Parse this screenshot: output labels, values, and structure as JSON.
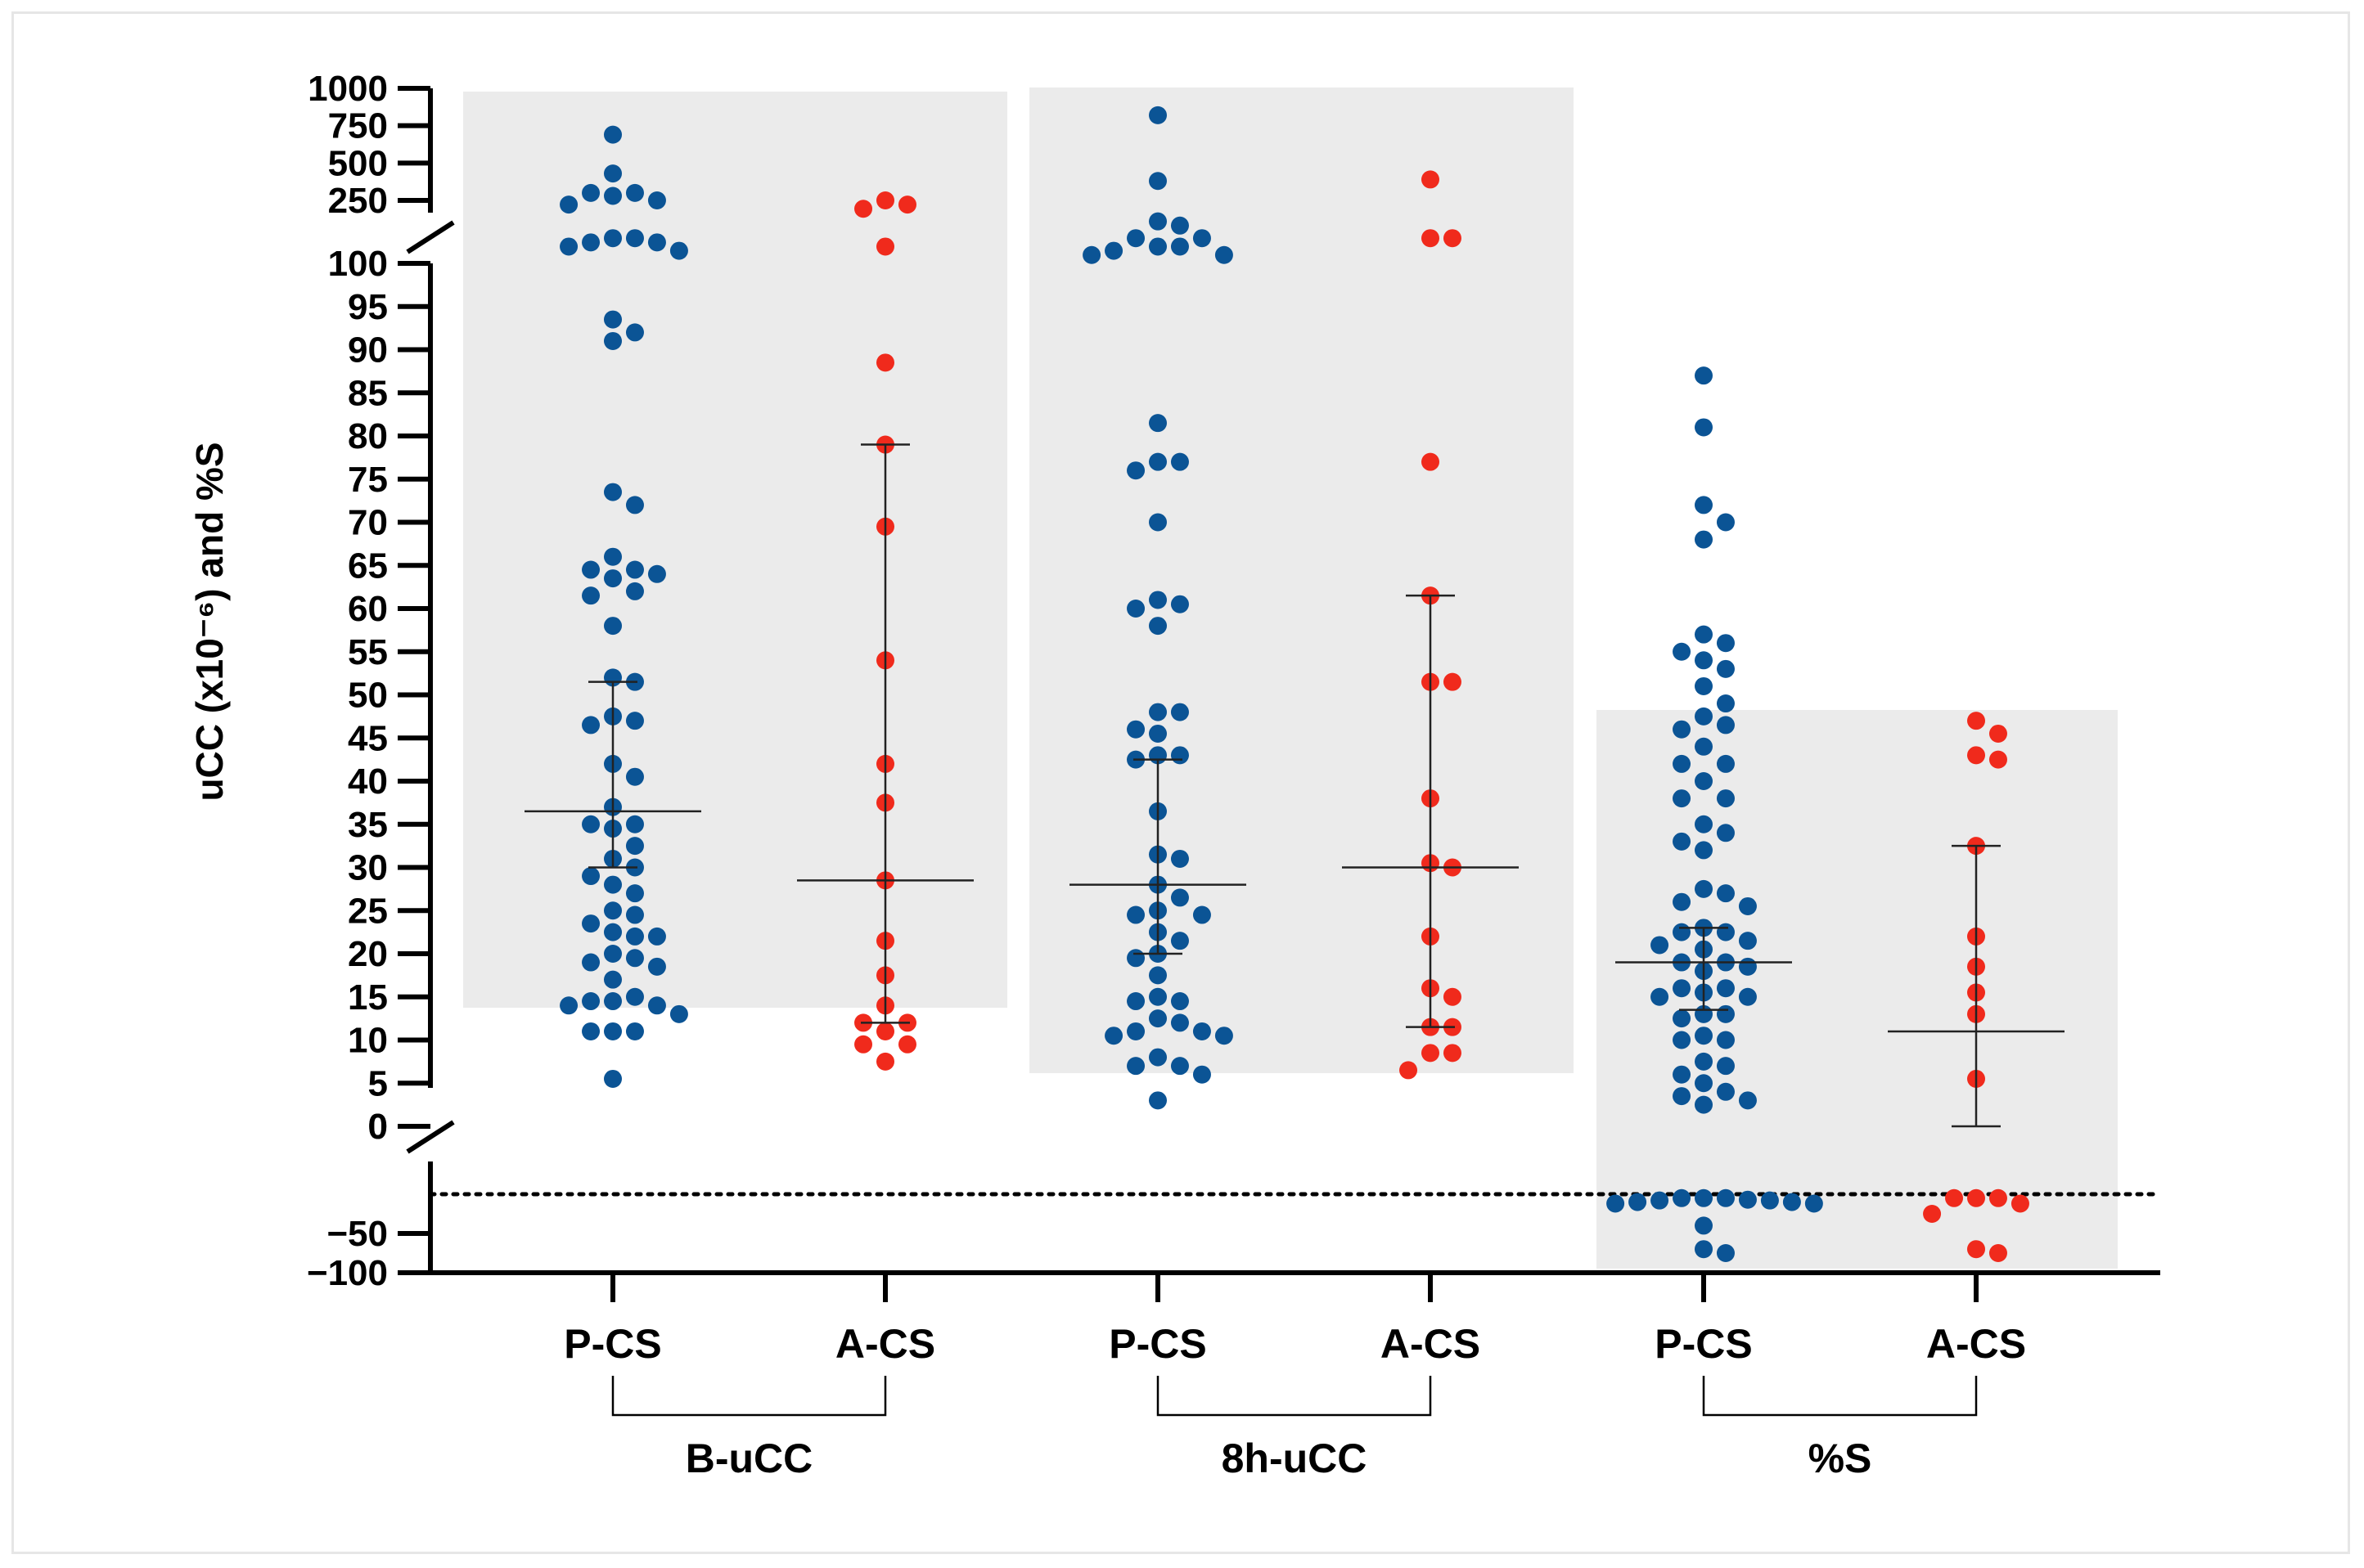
{
  "chart_data": {
    "type": "scatter",
    "subtype": "beeswarm dot plot with median and IQR bars, broken y-axis",
    "ylabel": "uCC (x10⁻⁶) and %S",
    "xlabel": "",
    "y_axis_segments": [
      {
        "range": [
          -100,
          0
        ],
        "ticks": [
          "0",
          "−50",
          "−100"
        ],
        "tick_values": [
          0,
          -50,
          -100
        ]
      },
      {
        "range": [
          0,
          100
        ],
        "ticks": [
          "0",
          "5",
          "10",
          "15",
          "20",
          "25",
          "30",
          "35",
          "40",
          "45",
          "50",
          "55",
          "60",
          "65",
          "70",
          "75",
          "80",
          "85",
          "90",
          "95",
          "100"
        ],
        "tick_values": [
          0,
          5,
          10,
          15,
          20,
          25,
          30,
          35,
          40,
          45,
          50,
          55,
          60,
          65,
          70,
          75,
          80,
          85,
          90,
          95,
          100
        ]
      },
      {
        "range": [
          100,
          1000
        ],
        "ticks": [
          "250",
          "500",
          "750",
          "1000"
        ],
        "tick_values": [
          250,
          500,
          750,
          1000
        ]
      }
    ],
    "zero_reference_line": "dotted",
    "colors": {
      "P-CS": "#0b5495",
      "A-CS": "#f02a1c",
      "shading": "#ebebeb"
    },
    "groups": [
      {
        "name": "B-uCC",
        "shaded": true,
        "series": [
          {
            "name": "P-CS",
            "color": "#0b5495",
            "median": 36.5,
            "q1": 30,
            "q3": 51.5,
            "values": [
              690,
              430,
              300,
              300,
              280,
              250,
              240,
              160,
              160,
              150,
              150,
              140,
              130,
              93.5,
              92,
              91,
              73.5,
              72,
              66,
              64.5,
              64.5,
              64,
              63.5,
              62,
              61.5,
              58,
              52,
              51.5,
              47.5,
              47,
              46.5,
              42,
              40.5,
              37,
              35,
              35,
              34.5,
              32.5,
              31,
              30,
              29,
              28,
              27,
              25,
              24.5,
              23.5,
              22.5,
              22,
              22,
              20,
              19.5,
              19,
              18.5,
              17,
              15,
              14.5,
              14.5,
              14,
              14,
              13,
              11,
              11,
              11,
              5.5
            ]
          },
          {
            "name": "A-CS",
            "color": "#f02a1c",
            "median": 28.5,
            "q1": 12,
            "q3": 79,
            "values": [
              250,
              240,
              230,
              140,
              88.5,
              79,
              69.5,
              54,
              42,
              37.5,
              28.5,
              21.5,
              17.5,
              14,
              12,
              12,
              11,
              9.5,
              9.5,
              7.5
            ]
          }
        ]
      },
      {
        "name": "8h-uCC",
        "shaded": true,
        "series": [
          {
            "name": "P-CS",
            "color": "#0b5495",
            "median": 28,
            "q1": 20,
            "q3": 42.5,
            "values": [
              820,
              380,
              200,
              190,
              160,
              160,
              140,
              140,
              130,
              120,
              120,
              81.5,
              77,
              77,
              76,
              70,
              61,
              60.5,
              60,
              58,
              48,
              48,
              46,
              45.5,
              43,
              43,
              42.5,
              36.5,
              31.5,
              31,
              28,
              26.5,
              25,
              24.5,
              24.5,
              22.5,
              21.5,
              20,
              19.5,
              17.5,
              15,
              14.5,
              14.5,
              12.5,
              12,
              11,
              11,
              10.5,
              10.5,
              8,
              7,
              7,
              6,
              3
            ]
          },
          {
            "name": "A-CS",
            "color": "#f02a1c",
            "median": 30,
            "q1": 11.5,
            "q3": 61.5,
            "values": [
              390,
              160,
              160,
              77,
              61.5,
              51.5,
              51.5,
              38,
              30.5,
              30,
              22,
              16,
              15,
              11.5,
              11.5,
              8.5,
              8.5,
              6.5
            ]
          }
        ]
      },
      {
        "name": "%S",
        "shaded": true,
        "series": [
          {
            "name": "P-CS",
            "color": "#0b5495",
            "median": 19,
            "q1": 13.5,
            "q3": 23,
            "values": [
              87,
              81,
              72,
              70,
              68,
              57,
              56,
              55,
              54,
              53,
              51,
              49,
              47.5,
              46.5,
              46,
              44,
              42,
              42,
              40,
              38,
              38,
              35,
              34,
              33,
              32,
              27.5,
              27,
              26,
              25.5,
              23,
              22.5,
              22.5,
              21.5,
              21,
              20.5,
              19,
              19,
              18.5,
              18,
              16,
              16,
              15.5,
              15,
              15,
              13,
              13,
              12.5,
              10.5,
              10,
              10,
              7.5,
              7,
              6,
              5,
              4,
              3.5,
              3,
              2.5,
              -5,
              -5,
              -5,
              -7,
              -8,
              -8,
              -10,
              -10,
              -12,
              -12,
              -40,
              -70,
              -75
            ]
          },
          {
            "name": "A-CS",
            "color": "#f02a1c",
            "median": 11,
            "q1": 0,
            "q3": 32.5,
            "values": [
              47,
              45.5,
              43,
              42.5,
              32.5,
              22,
              18.5,
              15.5,
              13,
              5.5,
              -5,
              -5,
              -5,
              -12,
              -25,
              -70,
              -75
            ]
          }
        ]
      }
    ],
    "categories": [
      "P-CS",
      "A-CS",
      "P-CS",
      "A-CS",
      "P-CS",
      "A-CS"
    ],
    "group_labels": [
      "B-uCC",
      "8h-uCC",
      "%S"
    ]
  }
}
